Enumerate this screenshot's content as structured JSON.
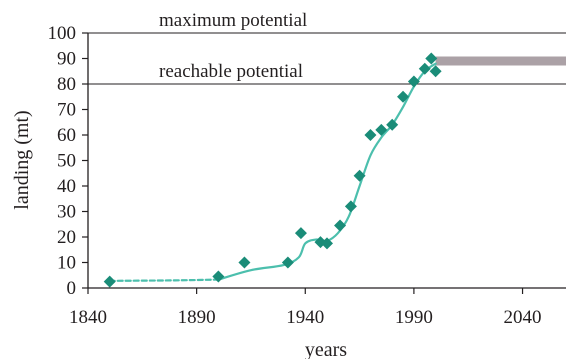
{
  "chart_data": {
    "type": "scatter",
    "title": "",
    "xlabel": "years",
    "ylabel": "landing (mt)",
    "xlim": [
      1840,
      2060
    ],
    "ylim": [
      0,
      100
    ],
    "x_ticks": [
      1840,
      1890,
      1940,
      1990,
      2040
    ],
    "y_ticks": [
      0,
      10,
      20,
      30,
      40,
      50,
      60,
      70,
      80,
      90,
      100
    ],
    "grid": false,
    "reference_lines": [
      {
        "label": "maximum potential",
        "y": 100
      },
      {
        "label": "reachable potential",
        "y": 80
      }
    ],
    "series": [
      {
        "kind": "points",
        "marker": "diamond",
        "x": [
          1850,
          1900,
          1912,
          1932,
          1938,
          1947,
          1950,
          1956,
          1961,
          1965,
          1970,
          1975,
          1980,
          1985,
          1990,
          1995,
          1998,
          2000
        ],
        "y": [
          2.5,
          4.5,
          10,
          10,
          21.5,
          18,
          17.5,
          24.5,
          32,
          44,
          60,
          62,
          64,
          75,
          81,
          86,
          90,
          85
        ]
      },
      {
        "kind": "trend-dashed",
        "x": [
          1850,
          1880,
          1900
        ],
        "y": [
          2.8,
          3,
          3.3
        ]
      },
      {
        "kind": "trend-solid",
        "x": [
          1900,
          1915,
          1930,
          1937,
          1940,
          1945,
          1950,
          1955,
          1960,
          1965,
          1970,
          1975,
          1980,
          1985,
          1990,
          1995,
          2000
        ],
        "y": [
          3.3,
          7,
          9,
          12,
          17.5,
          19,
          18.5,
          21.5,
          28,
          40,
          52,
          59,
          64,
          71,
          79,
          85,
          88
        ]
      },
      {
        "kind": "projection-band",
        "x": [
          2000,
          2060
        ],
        "y": [
          89,
          89
        ]
      }
    ],
    "colors": {
      "markers": "#1a8c78",
      "trend": "#4cbfad",
      "projection": "#aba1a6",
      "axis": "#231f20",
      "reference": "#231f20"
    }
  }
}
